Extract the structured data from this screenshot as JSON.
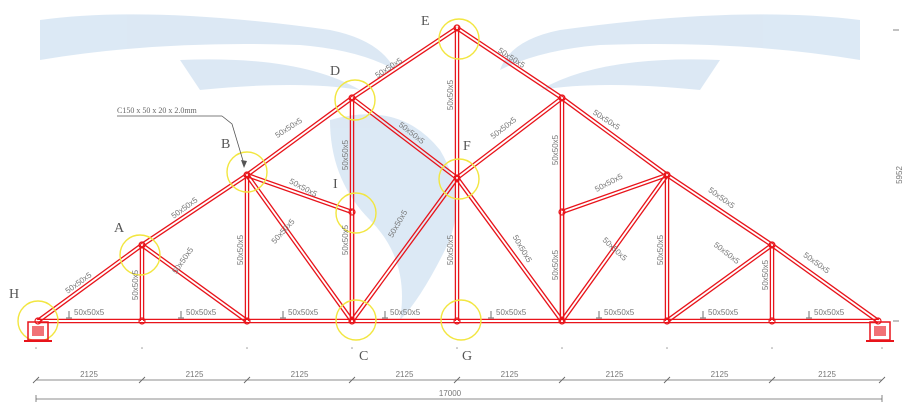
{
  "diagram": {
    "node_labels": {
      "A": "A",
      "B": "B",
      "C": "C",
      "D": "D",
      "E": "E",
      "F": "F",
      "G": "G",
      "H": "H",
      "I": "I"
    },
    "callout": "C150 x 50 x 20 x 2.0mm",
    "bottom_chord_section": "50x50x5",
    "web_section": "50x50x5",
    "panel_dimension": "2125",
    "total_dimension": "17000",
    "height_dimension": "5952",
    "colors": {
      "member": "#e8141b",
      "highlight": "#f2e640",
      "watermark": "#cfe0f0",
      "dimension": "#666666"
    }
  }
}
